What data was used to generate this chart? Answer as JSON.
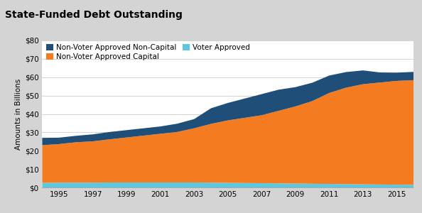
{
  "title": "State-Funded Debt Outstanding",
  "ylabel": "Amounts in Billions",
  "years": [
    1994,
    1995,
    1996,
    1997,
    1998,
    1999,
    2000,
    2001,
    2002,
    2003,
    2004,
    2005,
    2006,
    2007,
    2008,
    2009,
    2010,
    2011,
    2012,
    2013,
    2014,
    2015,
    2016
  ],
  "voter_approved": [
    2.5,
    2.6,
    2.6,
    2.6,
    2.7,
    2.7,
    2.7,
    2.7,
    2.7,
    2.7,
    2.6,
    2.5,
    2.4,
    2.3,
    2.2,
    2.1,
    2.0,
    1.9,
    1.8,
    1.7,
    1.6,
    1.5,
    1.4
  ],
  "non_voter_capital": [
    20.5,
    21.0,
    22.0,
    22.5,
    23.5,
    24.5,
    25.5,
    26.5,
    27.5,
    29.5,
    32.0,
    34.0,
    35.5,
    37.0,
    39.5,
    42.0,
    45.0,
    49.5,
    52.5,
    54.5,
    55.5,
    56.5,
    57.0
  ],
  "non_voter_non_capital": [
    4.0,
    3.5,
    3.5,
    3.8,
    4.0,
    4.0,
    4.0,
    4.0,
    4.5,
    5.0,
    8.5,
    9.5,
    10.5,
    11.5,
    11.5,
    10.5,
    10.0,
    9.5,
    8.5,
    7.5,
    5.5,
    4.5,
    4.5
  ],
  "colors": {
    "voter_approved": "#5bc8e0",
    "non_voter_capital": "#f47b20",
    "non_voter_non_capital": "#1f4e79"
  },
  "ylim": [
    0,
    80
  ],
  "yticks": [
    0,
    10,
    20,
    30,
    40,
    50,
    60,
    70,
    80
  ],
  "xtick_labels": [
    "1995",
    "1997",
    "1999",
    "2001",
    "2003",
    "2005",
    "2007",
    "2009",
    "2011",
    "2013",
    "2015"
  ],
  "xtick_positions": [
    1995,
    1997,
    1999,
    2001,
    2003,
    2005,
    2007,
    2009,
    2011,
    2013,
    2015
  ],
  "header_color": "#d4d4d4",
  "plot_bg_color": "#ffffff",
  "title_fontsize": 10,
  "label_fontsize": 7.5,
  "legend_fontsize": 7.5,
  "tick_fontsize": 7.5
}
